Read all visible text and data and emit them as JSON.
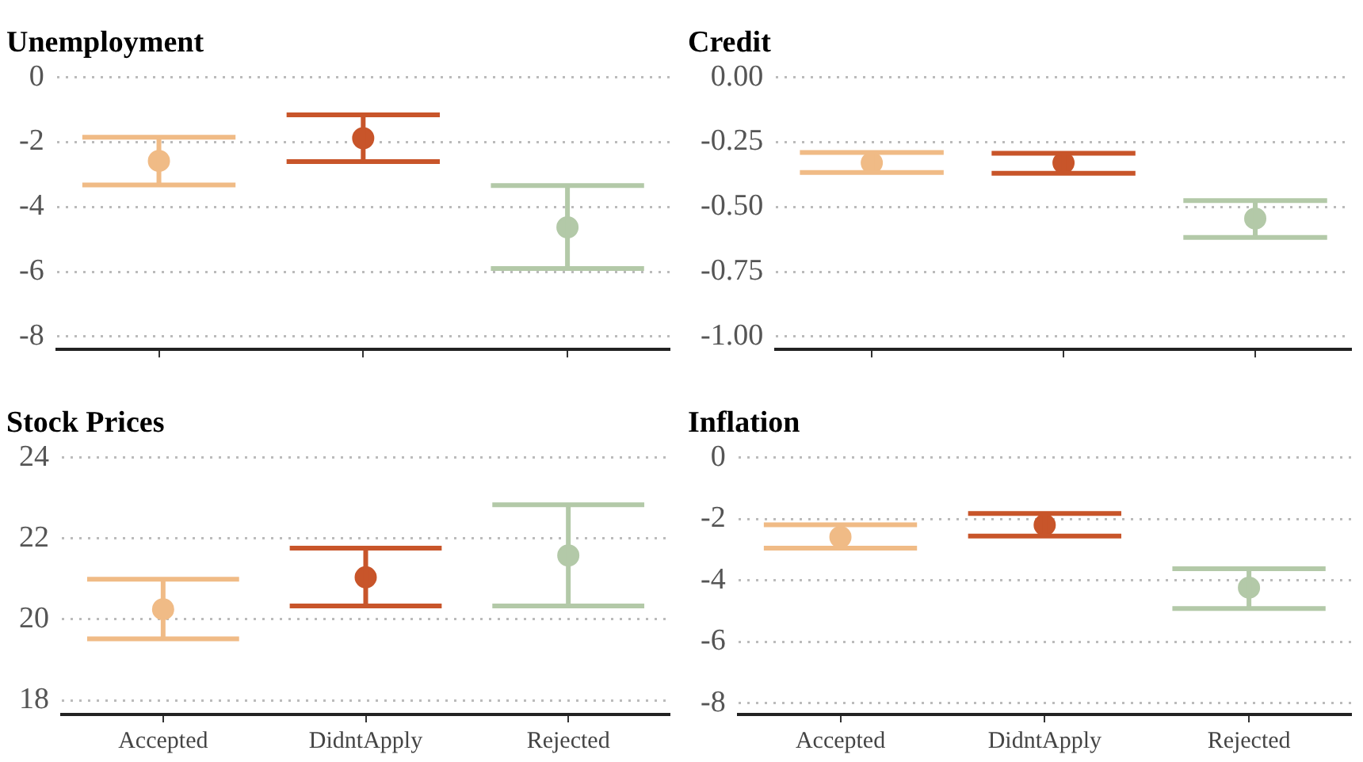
{
  "chart_data": [
    {
      "type": "scatter",
      "title": "Unemployment",
      "categories": [
        null,
        null,
        null
      ],
      "values": [
        -2.58,
        -1.88,
        -4.63
      ],
      "errors": [
        [
          -3.32,
          -1.85
        ],
        [
          -2.6,
          -1.16
        ],
        [
          -5.9,
          -3.34
        ]
      ],
      "colors": [
        "#f0bb86",
        "#c8552a",
        "#b3c9a8"
      ],
      "ylim": [
        -8.4,
        0
      ],
      "yticks": [
        -8,
        -6,
        -4,
        -2,
        0
      ],
      "grid": "y",
      "tick_labels": "y",
      "marker": "circle"
    },
    {
      "type": "scatter",
      "title": "Credit",
      "categories": [
        null,
        null,
        null
      ],
      "values": [
        -0.33,
        -0.33,
        -0.545
      ],
      "errors": [
        [
          -0.367,
          -0.29
        ],
        [
          -0.37,
          -0.293
        ],
        [
          -0.618,
          -0.476
        ]
      ],
      "colors": [
        "#f0bb86",
        "#c8552a",
        "#b3c9a8"
      ],
      "ylim": [
        -1.05,
        0
      ],
      "yticks": [
        {
          "value": -1,
          "label": "-1.00"
        },
        {
          "value": -0.75,
          "label": "-0.75"
        },
        {
          "value": -0.5,
          "label": "-0.50"
        },
        {
          "value": -0.25,
          "label": "-0.25"
        },
        {
          "value": 0,
          "label": "0.00"
        }
      ],
      "grid": "y",
      "tick_labels": "y",
      "marker": "circle"
    },
    {
      "type": "scatter",
      "title": "Stock Prices",
      "categories": [
        "Accepted",
        "DidntApply",
        "Rejected"
      ],
      "values": [
        20.25,
        21.04,
        21.58
      ],
      "errors": [
        [
          19.52,
          20.99
        ],
        [
          20.33,
          21.76
        ],
        [
          20.33,
          22.83
        ]
      ],
      "colors": [
        "#f0bb86",
        "#c8552a",
        "#b3c9a8"
      ],
      "ylim": [
        17.65,
        24
      ],
      "yticks": [
        18,
        20,
        22,
        24
      ],
      "grid": "y",
      "marker": "circle"
    },
    {
      "type": "scatter",
      "title": "Inflation",
      "categories": [
        "Accepted",
        "DidntApply",
        "Rejected"
      ],
      "values": [
        -2.59,
        -2.2,
        -4.24
      ],
      "errors": [
        [
          -2.95,
          -2.19
        ],
        [
          -2.56,
          -1.82
        ],
        [
          -4.92,
          -3.62
        ]
      ],
      "colors": [
        "#f0bb86",
        "#c8552a",
        "#b3c9a8"
      ],
      "ylim": [
        -8.37,
        0
      ],
      "yticks": [
        -8,
        -6,
        -4,
        -2,
        0
      ],
      "grid": "y",
      "marker": "circle"
    }
  ]
}
